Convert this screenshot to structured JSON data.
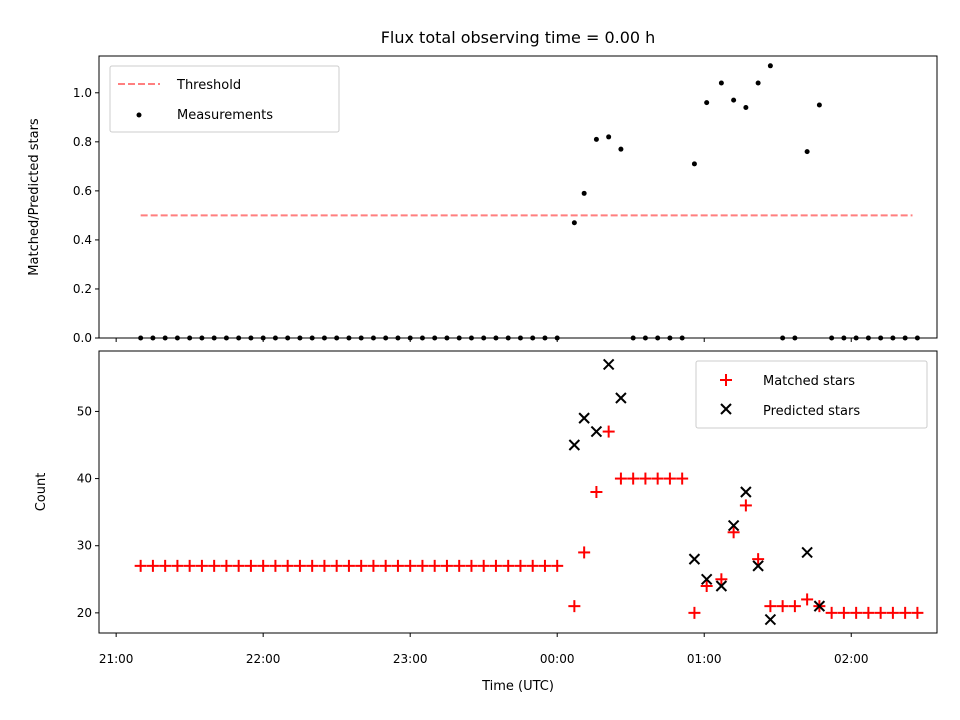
{
  "chart_data": [
    {
      "type": "scatter",
      "title": "Flux total observing time = 0.00 h",
      "ylabel": "Matched/Predicted stars",
      "xlim": [
        "21:00",
        "02:45"
      ],
      "ylim": [
        0,
        1.15
      ],
      "grid": false,
      "legend_position": "top-left",
      "x_ticks": [
        "21:00",
        "22:00",
        "23:00",
        "00:00",
        "01:00",
        "02:00"
      ],
      "y_ticks": [
        "0.0",
        "0.2",
        "0.4",
        "0.6",
        "0.8",
        "1.0"
      ],
      "threshold": {
        "name": "Threshold",
        "value": 0.5,
        "x_start": "21:10",
        "x_end": "02:25",
        "color": "#ff7f7f",
        "style": "dashed"
      },
      "series": [
        {
          "name": "Measurements",
          "marker": "dot",
          "color": "#000000",
          "points": [
            [
              "21:10",
              0
            ],
            [
              "21:15",
              0
            ],
            [
              "21:20",
              0
            ],
            [
              "21:25",
              0
            ],
            [
              "21:30",
              0
            ],
            [
              "21:35",
              0
            ],
            [
              "21:40",
              0
            ],
            [
              "21:45",
              0
            ],
            [
              "21:50",
              0
            ],
            [
              "21:55",
              0
            ],
            [
              "22:00",
              0
            ],
            [
              "22:05",
              0
            ],
            [
              "22:10",
              0
            ],
            [
              "22:15",
              0
            ],
            [
              "22:20",
              0
            ],
            [
              "22:25",
              0
            ],
            [
              "22:30",
              0
            ],
            [
              "22:35",
              0
            ],
            [
              "22:40",
              0
            ],
            [
              "22:45",
              0
            ],
            [
              "22:50",
              0
            ],
            [
              "22:55",
              0
            ],
            [
              "23:00",
              0
            ],
            [
              "23:05",
              0
            ],
            [
              "23:10",
              0
            ],
            [
              "23:15",
              0
            ],
            [
              "23:20",
              0
            ],
            [
              "23:25",
              0
            ],
            [
              "23:30",
              0
            ],
            [
              "23:35",
              0
            ],
            [
              "23:40",
              0
            ],
            [
              "23:45",
              0
            ],
            [
              "23:50",
              0
            ],
            [
              "23:55",
              0
            ],
            [
              "00:00",
              0
            ],
            [
              "00:07",
              0.47
            ],
            [
              "00:11",
              0.59
            ],
            [
              "00:16",
              0.81
            ],
            [
              "00:21",
              0.82
            ],
            [
              "00:26",
              0.77
            ],
            [
              "00:31",
              0
            ],
            [
              "00:36",
              0
            ],
            [
              "00:41",
              0
            ],
            [
              "00:46",
              0
            ],
            [
              "00:51",
              0
            ],
            [
              "00:56",
              0.71
            ],
            [
              "01:01",
              0.96
            ],
            [
              "01:07",
              1.04
            ],
            [
              "01:12",
              0.97
            ],
            [
              "01:17",
              0.94
            ],
            [
              "01:22",
              1.04
            ],
            [
              "01:27",
              1.11
            ],
            [
              "01:32",
              0
            ],
            [
              "01:37",
              0
            ],
            [
              "01:42",
              0.76
            ],
            [
              "01:47",
              0.95
            ],
            [
              "01:52",
              0
            ],
            [
              "01:57",
              0
            ],
            [
              "02:02",
              0
            ],
            [
              "02:07",
              0
            ],
            [
              "02:12",
              0
            ],
            [
              "02:17",
              0
            ],
            [
              "02:22",
              0
            ],
            [
              "02:27",
              0
            ]
          ]
        }
      ]
    },
    {
      "type": "scatter",
      "xlabel": "Time (UTC)",
      "ylabel": "Count",
      "xlim": [
        "21:00",
        "02:45"
      ],
      "ylim": [
        17,
        59
      ],
      "grid": false,
      "legend_position": "top-right",
      "x_ticks": [
        "21:00",
        "22:00",
        "23:00",
        "00:00",
        "01:00",
        "02:00"
      ],
      "y_ticks": [
        "20",
        "30",
        "40",
        "50"
      ],
      "series": [
        {
          "name": "Matched stars",
          "marker": "plus",
          "color": "#ff0000",
          "points": [
            [
              "21:10",
              27
            ],
            [
              "21:15",
              27
            ],
            [
              "21:20",
              27
            ],
            [
              "21:25",
              27
            ],
            [
              "21:30",
              27
            ],
            [
              "21:35",
              27
            ],
            [
              "21:40",
              27
            ],
            [
              "21:45",
              27
            ],
            [
              "21:50",
              27
            ],
            [
              "21:55",
              27
            ],
            [
              "22:00",
              27
            ],
            [
              "22:05",
              27
            ],
            [
              "22:10",
              27
            ],
            [
              "22:15",
              27
            ],
            [
              "22:20",
              27
            ],
            [
              "22:25",
              27
            ],
            [
              "22:30",
              27
            ],
            [
              "22:35",
              27
            ],
            [
              "22:40",
              27
            ],
            [
              "22:45",
              27
            ],
            [
              "22:50",
              27
            ],
            [
              "22:55",
              27
            ],
            [
              "23:00",
              27
            ],
            [
              "23:05",
              27
            ],
            [
              "23:10",
              27
            ],
            [
              "23:15",
              27
            ],
            [
              "23:20",
              27
            ],
            [
              "23:25",
              27
            ],
            [
              "23:30",
              27
            ],
            [
              "23:35",
              27
            ],
            [
              "23:40",
              27
            ],
            [
              "23:45",
              27
            ],
            [
              "23:50",
              27
            ],
            [
              "23:55",
              27
            ],
            [
              "00:00",
              27
            ],
            [
              "00:07",
              21
            ],
            [
              "00:11",
              29
            ],
            [
              "00:16",
              38
            ],
            [
              "00:21",
              47
            ],
            [
              "00:26",
              40
            ],
            [
              "00:31",
              40
            ],
            [
              "00:36",
              40
            ],
            [
              "00:41",
              40
            ],
            [
              "00:46",
              40
            ],
            [
              "00:51",
              40
            ],
            [
              "00:56",
              20
            ],
            [
              "01:01",
              24
            ],
            [
              "01:07",
              25
            ],
            [
              "01:12",
              32
            ],
            [
              "01:17",
              36
            ],
            [
              "01:22",
              28
            ],
            [
              "01:27",
              21
            ],
            [
              "01:32",
              21
            ],
            [
              "01:37",
              21
            ],
            [
              "01:42",
              22
            ],
            [
              "01:47",
              21
            ],
            [
              "01:52",
              20
            ],
            [
              "01:57",
              20
            ],
            [
              "02:02",
              20
            ],
            [
              "02:07",
              20
            ],
            [
              "02:12",
              20
            ],
            [
              "02:17",
              20
            ],
            [
              "02:22",
              20
            ],
            [
              "02:27",
              20
            ]
          ]
        },
        {
          "name": "Predicted stars",
          "marker": "x",
          "color": "#000000",
          "points": [
            [
              "00:07",
              45
            ],
            [
              "00:11",
              49
            ],
            [
              "00:16",
              47
            ],
            [
              "00:21",
              57
            ],
            [
              "00:26",
              52
            ],
            [
              "00:56",
              28
            ],
            [
              "01:01",
              25
            ],
            [
              "01:07",
              24
            ],
            [
              "01:12",
              33
            ],
            [
              "01:17",
              38
            ],
            [
              "01:22",
              27
            ],
            [
              "01:27",
              19
            ],
            [
              "01:42",
              29
            ],
            [
              "01:47",
              21
            ]
          ]
        }
      ]
    }
  ]
}
